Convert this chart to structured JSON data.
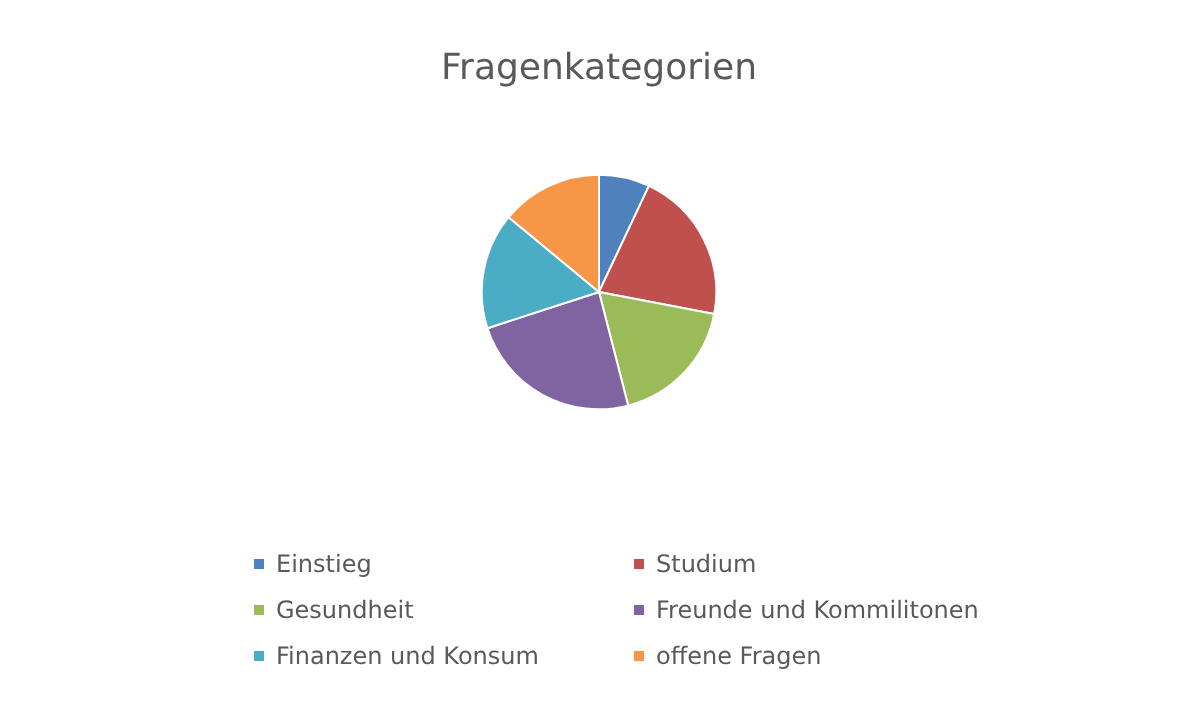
{
  "chart_data": {
    "type": "pie",
    "title": "Fragenkategorien",
    "categories": [
      "Einstieg",
      "Studium",
      "Gesundheit",
      "Freunde und Kommilitonen",
      "Finanzen und Konsum",
      "offene Fragen"
    ],
    "values": [
      7,
      21,
      18,
      24,
      16,
      14
    ],
    "colors": [
      "#4f81bd",
      "#c0504d",
      "#9bbb59",
      "#8064a2",
      "#4bacc6",
      "#f79646"
    ],
    "legend": "bottom"
  }
}
